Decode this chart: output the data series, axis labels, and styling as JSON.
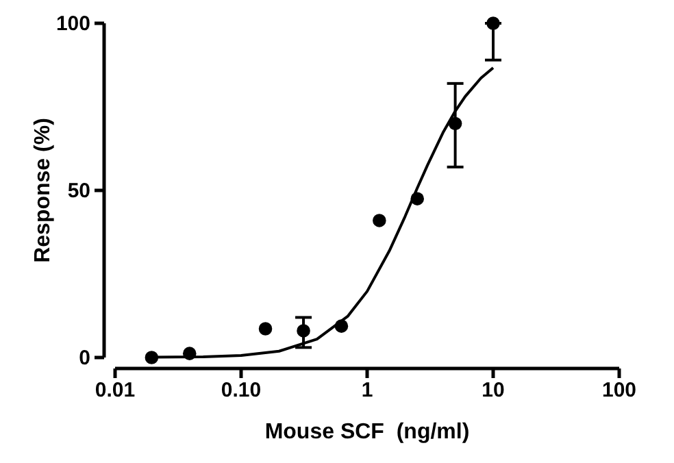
{
  "chart_data": {
    "type": "scatter",
    "xlabel": "Mouse SCF  (ng/ml)",
    "ylabel": "Response (%)",
    "log": "x",
    "xlim": [
      0.01,
      100
    ],
    "xticks": [
      {
        "value": 0.01,
        "label": "0.01"
      },
      {
        "value": 0.1,
        "label": "0.10"
      },
      1,
      10,
      100
    ],
    "ylim": [
      0,
      100
    ],
    "yticks": [
      0,
      50,
      100
    ],
    "grid": false,
    "marker": "circle",
    "series": [
      {
        "color": "#000000",
        "x": [
          0.0195,
          0.039,
          0.156,
          0.3125,
          0.625,
          1.25,
          2.5,
          5,
          10
        ],
        "values": [
          0,
          1.2,
          8.6,
          8,
          9.4,
          41,
          47.5,
          70,
          100
        ],
        "errors": [
          null,
          null,
          null,
          [
            3,
            12
          ],
          null,
          null,
          null,
          [
            57,
            82
          ],
          [
            89,
            100
          ]
        ]
      },
      {
        "type": "line",
        "color": "#000000",
        "line_style": "solid",
        "marker": "none",
        "x": [
          0.02,
          0.05,
          0.1,
          0.2,
          0.4,
          0.7,
          1,
          1.5,
          2,
          2.5,
          3,
          4,
          5,
          6,
          8,
          10
        ],
        "values": [
          0.1,
          0.2,
          0.6,
          1.9,
          5.5,
          12.3,
          19.8,
          31.9,
          42.2,
          50.7,
          57.4,
          67.3,
          73.7,
          78.1,
          83.6,
          86.7
        ]
      }
    ]
  }
}
